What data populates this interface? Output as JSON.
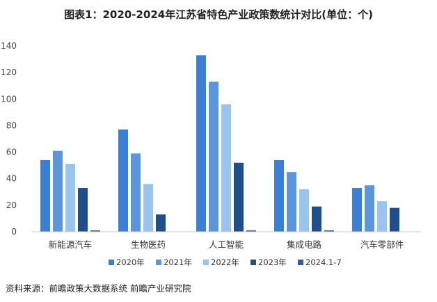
{
  "chart_data": {
    "type": "bar",
    "title": "图表1：2020-2024年江苏省特色产业政策数统计对比(单位：个)",
    "categories": [
      "新能源汽车",
      "生物医药",
      "人工智能",
      "集成电路",
      "汽车零部件"
    ],
    "series": [
      {
        "name": "2020年",
        "values": [
          54,
          77,
          133,
          54,
          33
        ]
      },
      {
        "name": "2021年",
        "values": [
          61,
          59,
          113,
          45,
          35
        ]
      },
      {
        "name": "2022年",
        "values": [
          51,
          36,
          96,
          32,
          23
        ]
      },
      {
        "name": "2023年",
        "values": [
          33,
          13,
          52,
          19,
          18
        ]
      },
      {
        "name": "2024.1-7",
        "values": [
          1,
          0,
          1,
          1,
          0
        ]
      }
    ],
    "ylim": [
      0,
      140
    ],
    "yticks": [
      0,
      20,
      40,
      60,
      80,
      100,
      120,
      140
    ],
    "xlabel": "",
    "ylabel": "",
    "grid": false,
    "legend_position": "bottom"
  },
  "colors": [
    "#3a7fd5",
    "#5b96db",
    "#9bc3f0",
    "#1f4e8c",
    "#2b5fa8"
  ],
  "watermark": "前瞻产业研究院",
  "source": "资料来源：前瞻政策大数据系统 前瞻产业研究院"
}
